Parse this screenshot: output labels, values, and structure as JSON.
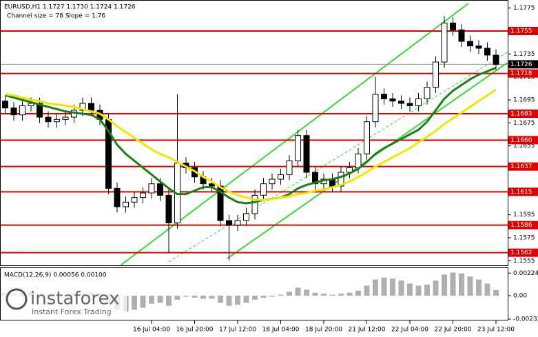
{
  "chart_data": [
    {
      "type": "candlestick",
      "title": "EURUSD,H1  1.1727 1.1730 1.1724 1.1726",
      "subtitle": "Channel size = 78 Slope = 1.76",
      "categories": [
        null,
        null,
        null,
        null,
        null,
        null,
        null,
        null,
        null,
        null,
        null,
        null,
        null,
        null,
        null,
        null,
        null,
        "16 Jul 04:00",
        null,
        null,
        null,
        null,
        "16 Jul 20:00",
        null,
        null,
        null,
        null,
        "17 Jul 12:00",
        null,
        null,
        null,
        null,
        "18 Jul 04:00",
        null,
        null,
        null,
        null,
        "18 Jul 20:00",
        null,
        null,
        null,
        null,
        "21 Jul 12:00",
        null,
        null,
        null,
        null,
        "22 Jul 04:00",
        null,
        null,
        null,
        null,
        "22 Jul 20:00",
        null,
        null,
        null,
        null,
        "23 Jul 12:00"
      ],
      "open": [
        1.1694,
        1.1688,
        1.1682,
        1.169,
        1.1692,
        1.168,
        1.1676,
        1.1678,
        1.168,
        1.1686,
        1.1692,
        1.1686,
        1.1678,
        1.1618,
        1.1602,
        1.1606,
        1.161,
        1.1614,
        1.1622,
        1.1612,
        1.1588,
        1.164,
        1.1636,
        1.1628,
        1.1622,
        1.162,
        1.159,
        1.1586,
        1.159,
        1.1596,
        1.1612,
        1.1622,
        1.1626,
        1.163,
        1.1642,
        1.1664,
        1.1632,
        1.1622,
        1.1626,
        1.162,
        1.1632,
        1.1636,
        1.1648,
        1.1676,
        1.17,
        1.1696,
        1.1694,
        1.1692,
        1.169,
        1.1696,
        1.1706,
        1.1728,
        1.1762,
        1.1756,
        1.1746,
        1.1742,
        1.174,
        1.1734
      ],
      "high": [
        1.1699,
        1.1693,
        1.1695,
        1.1697,
        1.1697,
        1.1685,
        1.1683,
        1.1685,
        1.1691,
        1.1697,
        1.1697,
        1.1691,
        1.1683,
        1.1623,
        1.1611,
        1.1615,
        1.1619,
        1.1627,
        1.1627,
        1.1617,
        1.17,
        1.1645,
        1.1641,
        1.1633,
        1.1627,
        1.1625,
        1.1595,
        1.1595,
        1.1601,
        1.1617,
        1.1627,
        1.1631,
        1.1635,
        1.1647,
        1.1669,
        1.1669,
        1.1637,
        1.1631,
        1.1631,
        1.1637,
        1.1641,
        1.1653,
        1.1681,
        1.1715,
        1.1705,
        1.1701,
        1.1699,
        1.1697,
        1.1701,
        1.1711,
        1.1733,
        1.1768,
        1.1767,
        1.1761,
        1.1751,
        1.1747,
        1.1745,
        1.1739
      ],
      "low": [
        1.1683,
        1.1677,
        1.1677,
        1.1685,
        1.1675,
        1.1671,
        1.1671,
        1.1673,
        1.1675,
        1.1681,
        1.1681,
        1.1673,
        1.1613,
        1.1597,
        1.1597,
        1.1601,
        1.1605,
        1.1609,
        1.1607,
        1.1562,
        1.1583,
        1.1631,
        1.1623,
        1.1617,
        1.1615,
        1.1585,
        1.1555,
        1.1581,
        1.1585,
        1.1591,
        1.1607,
        1.1617,
        1.1621,
        1.1625,
        1.1637,
        1.1627,
        1.1617,
        1.1617,
        1.1615,
        1.1615,
        1.1627,
        1.1631,
        1.1643,
        1.1671,
        1.1691,
        1.1689,
        1.1687,
        1.1685,
        1.1685,
        1.1691,
        1.1701,
        1.1723,
        1.1751,
        1.1741,
        1.1737,
        1.1735,
        1.1729,
        1.1721
      ],
      "close": [
        1.1688,
        1.1682,
        1.169,
        1.1692,
        1.168,
        1.1676,
        1.1678,
        1.168,
        1.1686,
        1.1692,
        1.1686,
        1.1678,
        1.1618,
        1.1602,
        1.1606,
        1.161,
        1.1614,
        1.1622,
        1.1612,
        1.1588,
        1.164,
        1.1636,
        1.1628,
        1.1622,
        1.162,
        1.159,
        1.1586,
        1.159,
        1.1596,
        1.1612,
        1.1622,
        1.1626,
        1.163,
        1.1642,
        1.1664,
        1.1632,
        1.1622,
        1.1626,
        1.162,
        1.1632,
        1.1636,
        1.1648,
        1.1676,
        1.17,
        1.1696,
        1.1694,
        1.1692,
        1.169,
        1.1696,
        1.1706,
        1.1728,
        1.1762,
        1.1756,
        1.1746,
        1.1742,
        1.174,
        1.1734,
        1.1726
      ],
      "series": [
        {
          "color": "#1a7f1a",
          "values": [
            1.1699,
            1.1697,
            1.1695,
            1.1693,
            1.1691,
            1.1689,
            1.1687,
            1.1685,
            1.1684,
            1.1683,
            1.1682,
            1.1678,
            1.1668,
            1.1656,
            1.1648,
            1.1642,
            1.1636,
            1.163,
            1.1624,
            1.1618,
            1.1613,
            1.1613,
            1.1616,
            1.1619,
            1.1619,
            1.1615,
            1.161,
            1.1606,
            1.1605,
            1.1606,
            1.1608,
            1.1609,
            1.161,
            1.1613,
            1.1618,
            1.1621,
            1.1623,
            1.1625,
            1.1626,
            1.1628,
            1.1631,
            1.1635,
            1.1641,
            1.1648,
            1.1653,
            1.1657,
            1.1661,
            1.1665,
            1.1669,
            1.1676,
            1.1686,
            1.1696,
            1.1703,
            1.1708,
            1.1713,
            1.1717,
            1.172,
            1.1723
          ]
        },
        {
          "color": "#f2e600",
          "values": [
            1.17,
            1.1699,
            1.1697,
            1.1695,
            1.1694,
            1.1692,
            1.1691,
            1.169,
            1.1689,
            1.1687,
            1.1685,
            1.1683,
            1.1678,
            1.1672,
            1.1667,
            1.1662,
            1.1657,
            1.1652,
            1.1648,
            1.1645,
            1.1641,
            1.1637,
            1.1633,
            1.1628,
            1.1624,
            1.1619,
            1.1615,
            1.1612,
            1.161,
            1.1608,
            1.1608,
            1.1609,
            1.161,
            1.1611,
            1.1613,
            1.1614,
            1.1616,
            1.1617,
            1.1619,
            1.1621,
            1.1624,
            1.1628,
            1.1632,
            1.1637,
            1.1641,
            1.1645,
            1.1649,
            1.1653,
            1.1658,
            1.1663,
            1.1668,
            1.1674,
            1.1679,
            1.1684,
            1.1689,
            1.1694,
            1.1699,
            1.1704
          ]
        }
      ],
      "ylim": [
        1.1551,
        1.1782
      ],
      "yticks": [
        1.1775,
        1.1735,
        1.1715,
        1.1695,
        1.1675,
        1.1655,
        1.1595,
        1.1575,
        1.1555
      ],
      "levels": [
        1.1755,
        1.1718,
        1.1683,
        {
          "value": 1.166,
          "label": "1.1660"
        },
        1.1637,
        1.1615,
        1.1586,
        1.1562
      ],
      "level_color": "#e00000",
      "last_price": 1.1726,
      "bull_color": "#ffffff",
      "bear_color": "#000000"
    },
    {
      "type": "bar",
      "title": "MACD(12,26,9) 0.00056 0.00100",
      "values": [
        0.0003,
        0.0002,
        0.0003,
        0.0004,
        0.0002,
        0.0001,
        0,
        -0.0001,
        0.0001,
        0.0002,
        0.0003,
        0.0002,
        -0.0008,
        -0.0014,
        -0.0016,
        -0.0014,
        -0.0012,
        -0.0008,
        -0.0007,
        -0.001,
        -0.0004,
        -0.0001,
        -0.0002,
        -0.0003,
        -0.0003,
        -0.0007,
        -0.001,
        -0.0009,
        -0.0007,
        -0.0004,
        -0.0002,
        -0.0001,
        0.0001,
        0.0004,
        0.0008,
        0.0006,
        0.0003,
        0.0002,
        0.0001,
        0.0002,
        0.0003,
        0.0005,
        0.001,
        0.0016,
        0.0018,
        0.0017,
        0.0015,
        0.0012,
        0.001,
        0.0011,
        0.0015,
        0.0021,
        0.0023,
        0.0022,
        0.0019,
        0.0016,
        0.0012,
        0.00056
      ],
      "color": "#b0b0b0",
      "ylim": [
        -0.00239,
        0.00274
      ],
      "yticks": [
        0.00224,
        {
          "value": 0,
          "label": "0.00"
        },
        -0.00232
      ]
    }
  ],
  "logo": {
    "name": "instaforex",
    "tagline": "Instant Forex Trading"
  }
}
